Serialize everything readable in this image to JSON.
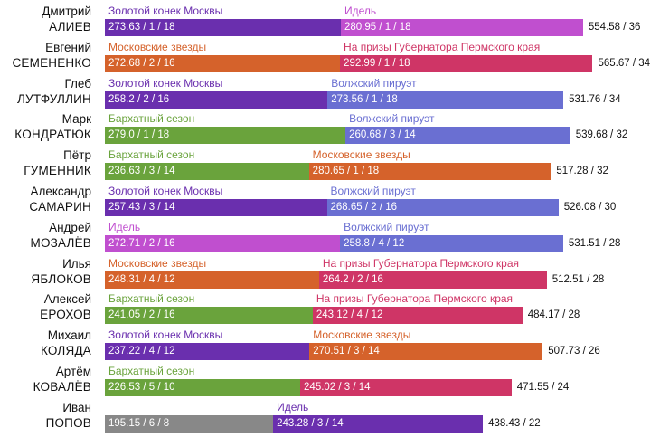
{
  "chart_data": {
    "type": "bar",
    "orientation": "horizontal",
    "stacked": true,
    "competition_colors": {
      "Золотой конек Москвы": "#6a2fae",
      "Идель": "#c04fcf",
      "Московские звезды": "#d5622b",
      "На призы Губернатора Пермского края": "#cf3566",
      "Волжский пируэт": "#6a6fd2",
      "Бархатный сезон": "#6aa33c"
    },
    "skaters": [
      {
        "first": "Дмитрий",
        "last": "АЛИЕВ",
        "total": "554.58 / 36",
        "stages": [
          {
            "competition": "Золотой конек Москвы",
            "score": 273.63,
            "label": "273.63 / 1 / 18"
          },
          {
            "competition": "Идель",
            "score": 280.95,
            "label": "280.95 / 1 / 18"
          }
        ]
      },
      {
        "first": "Евгений",
        "last": "СЕМЕНЕНКО",
        "total": "565.67 / 34",
        "stages": [
          {
            "competition": "Московские звезды",
            "score": 272.68,
            "label": "272.68 / 2 / 16"
          },
          {
            "competition": "На призы Губернатора Пермского края",
            "score": 292.99,
            "label": "292.99 / 1 / 18"
          }
        ]
      },
      {
        "first": "Глеб",
        "last": "ЛУТФУЛЛИН",
        "total": "531.76 / 34",
        "stages": [
          {
            "competition": "Золотой конек Москвы",
            "score": 258.2,
            "label": "258.2 / 2 / 16"
          },
          {
            "competition": "Волжский пируэт",
            "score": 273.56,
            "label": "273.56 / 1 / 18"
          }
        ]
      },
      {
        "first": "Марк",
        "last": "КОНДРАТЮК",
        "total": "539.68 / 32",
        "stages": [
          {
            "competition": "Бархатный сезон",
            "score": 279.0,
            "label": "279.0 / 1 / 18"
          },
          {
            "competition": "Волжский пируэт",
            "score": 260.68,
            "label": "260.68 / 3 / 14"
          }
        ]
      },
      {
        "first": "Пётр",
        "last": "ГУМЕННИК",
        "total": "517.28 / 32",
        "stages": [
          {
            "competition": "Бархатный сезон",
            "score": 236.63,
            "label": "236.63 / 3 / 14"
          },
          {
            "competition": "Московские звезды",
            "score": 280.65,
            "label": "280.65 / 1 / 18"
          }
        ]
      },
      {
        "first": "Александр",
        "last": "САМАРИН",
        "total": "526.08 / 30",
        "stages": [
          {
            "competition": "Золотой конек Москвы",
            "score": 257.43,
            "label": "257.43 / 3 / 14"
          },
          {
            "competition": "Волжский пируэт",
            "score": 268.65,
            "label": "268.65 / 2 / 16"
          }
        ]
      },
      {
        "first": "Андрей",
        "last": "МОЗАЛЁВ",
        "total": "531.51 / 28",
        "stages": [
          {
            "competition": "Идель",
            "score": 272.71,
            "label": "272.71 / 2 / 16"
          },
          {
            "competition": "Волжский пируэт",
            "score": 258.8,
            "label": "258.8 / 4 / 12"
          }
        ]
      },
      {
        "first": "Илья",
        "last": "ЯБЛОКОВ",
        "total": "512.51 / 28",
        "stages": [
          {
            "competition": "Московские звезды",
            "score": 248.31,
            "label": "248.31 / 4 / 12"
          },
          {
            "competition": "На призы Губернатора Пермского края",
            "score": 264.2,
            "label": "264.2 / 2 / 16"
          }
        ]
      },
      {
        "first": "Алексей",
        "last": "ЕРОХОВ",
        "total": "484.17 / 28",
        "stages": [
          {
            "competition": "Бархатный сезон",
            "score": 241.05,
            "label": "241.05 / 2 / 16"
          },
          {
            "competition": "На призы Губернатора Пермского края",
            "score": 243.12,
            "label": "243.12 / 4 / 12"
          }
        ]
      },
      {
        "first": "Михаил",
        "last": "КОЛЯДА",
        "total": "507.73 / 26",
        "stages": [
          {
            "competition": "Золотой конек Москвы",
            "score": 237.22,
            "label": "237.22 / 4 / 12"
          },
          {
            "competition": "Московские звезды",
            "score": 270.51,
            "label": "270.51 / 3 / 14"
          }
        ]
      },
      {
        "first": "Артём",
        "last": "КОВАЛЁВ",
        "total": "471.55 / 24",
        "stages": [
          {
            "competition": "Бархатный сезон",
            "score": 226.53,
            "label": "226.53 / 5 / 10"
          },
          {
            "competition": "",
            "score": 245.02,
            "label": "245.02 / 3 / 14"
          }
        ]
      },
      {
        "first": "Иван",
        "last": "ПОПОВ",
        "total": "438.43 / 22",
        "stages": [
          {
            "competition": "",
            "score": 195.15,
            "label": "195.15 / 6 / 8"
          },
          {
            "competition": "Идель",
            "score": 243.28,
            "label": "243.28 / 3 / 14"
          }
        ]
      }
    ],
    "stage2_color_overrides": {
      "10": "#cf3566",
      "11": "#6a2fae"
    }
  }
}
